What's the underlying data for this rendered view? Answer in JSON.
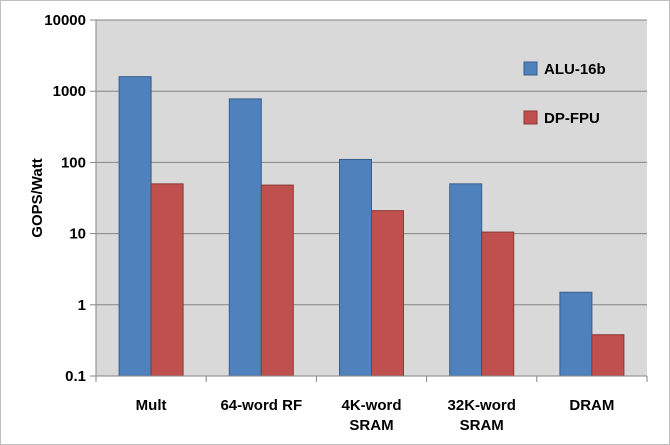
{
  "chart_data": {
    "type": "bar",
    "title": "",
    "xlabel": "",
    "ylabel": "GOPS/Watt",
    "yscale": "log",
    "ylim": [
      0.1,
      10000
    ],
    "yticks": [
      "0.1",
      "1",
      "10",
      "100",
      "1000",
      "10000"
    ],
    "grid": "horizontal",
    "legend_position": "top-right",
    "categories": [
      [
        "Mult"
      ],
      [
        "64-word RF"
      ],
      [
        "4K-word",
        "SRAM"
      ],
      [
        "32K-word",
        "SRAM"
      ],
      [
        "DRAM"
      ]
    ],
    "series": [
      {
        "name": "ALU-16b",
        "color": "#4f81bd",
        "values": [
          1600,
          780,
          110,
          50,
          1.5
        ]
      },
      {
        "name": "DP-FPU",
        "color": "#c0504d",
        "values": [
          50,
          48,
          21,
          10.5,
          0.38
        ]
      }
    ]
  }
}
